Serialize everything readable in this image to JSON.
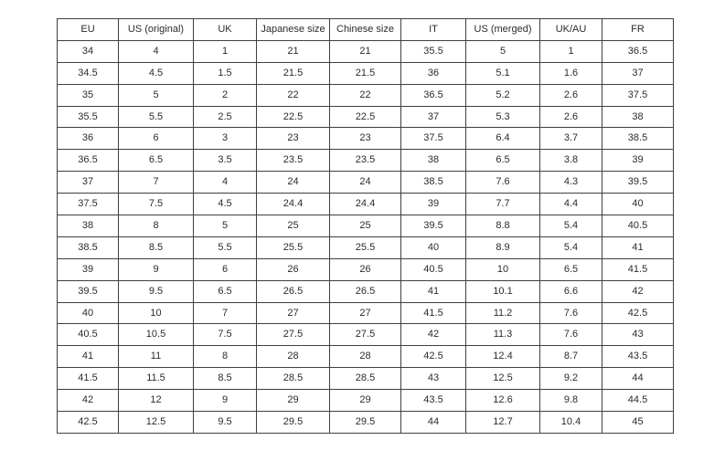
{
  "chart_data": {
    "type": "table",
    "title": "",
    "columns": [
      "EU",
      "US (original)",
      "UK",
      "Japanese size",
      "Chinese size",
      "IT",
      "US (merged)",
      "UK/AU",
      "FR"
    ],
    "rows": [
      [
        "34",
        "4",
        "1",
        "21",
        "21",
        "35.5",
        "5",
        "1",
        "36.5"
      ],
      [
        "34.5",
        "4.5",
        "1.5",
        "21.5",
        "21.5",
        "36",
        "5.1",
        "1.6",
        "37"
      ],
      [
        "35",
        "5",
        "2",
        "22",
        "22",
        "36.5",
        "5.2",
        "2.6",
        "37.5"
      ],
      [
        "35.5",
        "5.5",
        "2.5",
        "22.5",
        "22.5",
        "37",
        "5.3",
        "2.6",
        "38"
      ],
      [
        "36",
        "6",
        "3",
        "23",
        "23",
        "37.5",
        "6.4",
        "3.7",
        "38.5"
      ],
      [
        "36.5",
        "6.5",
        "3.5",
        "23.5",
        "23.5",
        "38",
        "6.5",
        "3.8",
        "39"
      ],
      [
        "37",
        "7",
        "4",
        "24",
        "24",
        "38.5",
        "7.6",
        "4.3",
        "39.5"
      ],
      [
        "37.5",
        "7.5",
        "4.5",
        "24.4",
        "24.4",
        "39",
        "7.7",
        "4.4",
        "40"
      ],
      [
        "38",
        "8",
        "5",
        "25",
        "25",
        "39.5",
        "8.8",
        "5.4",
        "40.5"
      ],
      [
        "38.5",
        "8.5",
        "5.5",
        "25.5",
        "25.5",
        "40",
        "8.9",
        "5.4",
        "41"
      ],
      [
        "39",
        "9",
        "6",
        "26",
        "26",
        "40.5",
        "10",
        "6.5",
        "41.5"
      ],
      [
        "39.5",
        "9.5",
        "6.5",
        "26.5",
        "26.5",
        "41",
        "10.1",
        "6.6",
        "42"
      ],
      [
        "40",
        "10",
        "7",
        "27",
        "27",
        "41.5",
        "11.2",
        "7.6",
        "42.5"
      ],
      [
        "40.5",
        "10.5",
        "7.5",
        "27.5",
        "27.5",
        "42",
        "11.3",
        "7.6",
        "43"
      ],
      [
        "41",
        "11",
        "8",
        "28",
        "28",
        "42.5",
        "12.4",
        "8.7",
        "43.5"
      ],
      [
        "41.5",
        "11.5",
        "8.5",
        "28.5",
        "28.5",
        "43",
        "12.5",
        "9.2",
        "44"
      ],
      [
        "42",
        "12",
        "9",
        "29",
        "29",
        "43.5",
        "12.6",
        "9.8",
        "44.5"
      ],
      [
        "42.5",
        "12.5",
        "9.5",
        "29.5",
        "29.5",
        "44",
        "12.7",
        "10.4",
        "45"
      ]
    ]
  }
}
